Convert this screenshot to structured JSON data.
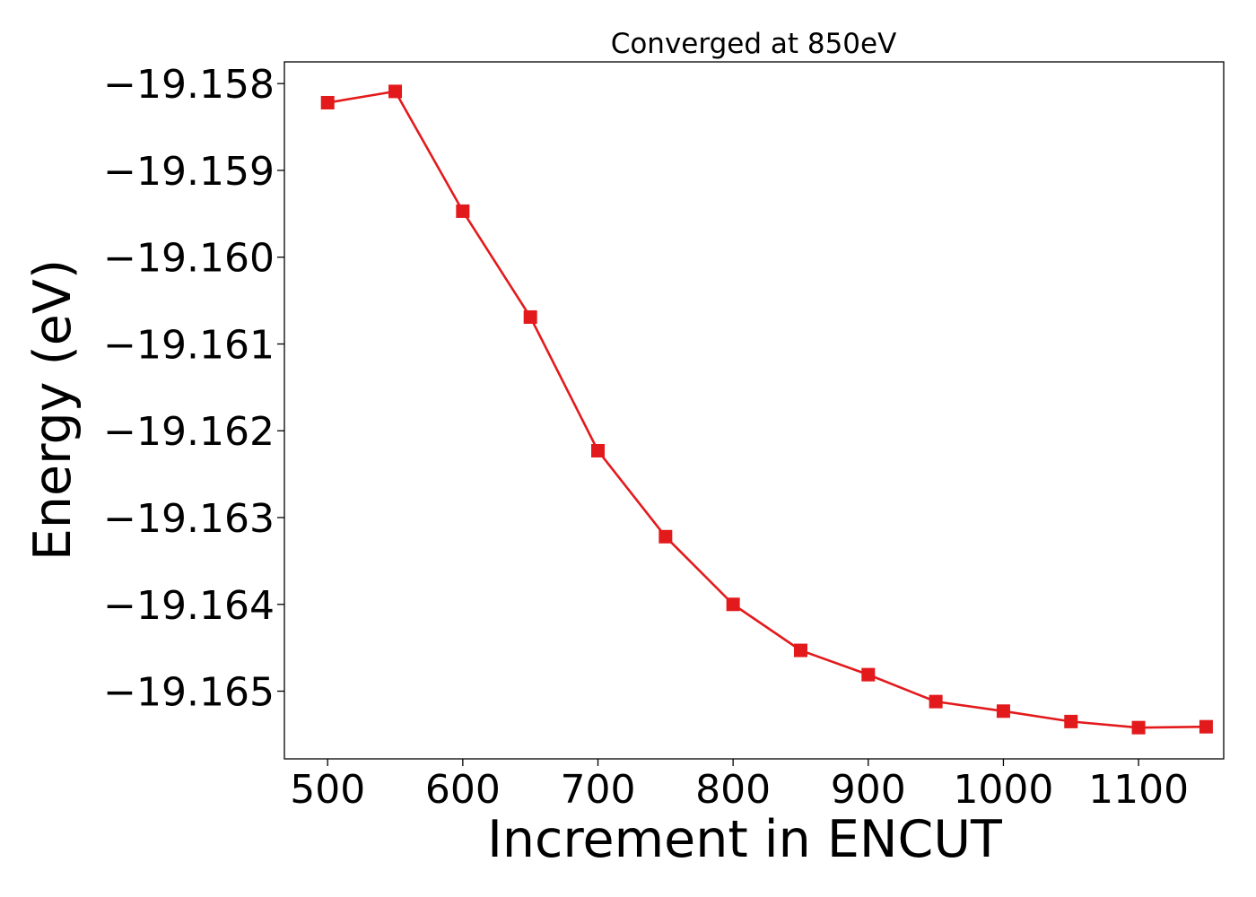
{
  "chart_data": {
    "type": "line",
    "title": "Converged at 850eV",
    "xlabel": "Increment in ENCUT",
    "ylabel": "Energy (eV)",
    "xlim": [
      468,
      1163
    ],
    "ylim": [
      -19.16578,
      -19.15775
    ],
    "xticks": [
      500,
      600,
      700,
      800,
      900,
      1000,
      1100
    ],
    "xtick_labels": [
      "500",
      "600",
      "700",
      "800",
      "900",
      "1000",
      "1100"
    ],
    "yticks": [
      -19.158,
      -19.159,
      -19.16,
      -19.161,
      -19.162,
      -19.163,
      -19.164,
      -19.165
    ],
    "ytick_labels": [
      "−19.158",
      "−19.159",
      "−19.160",
      "−19.161",
      "−19.162",
      "−19.163",
      "−19.164",
      "−19.165"
    ],
    "grid": false,
    "marker": "square",
    "color": "#e31a1c",
    "series": [
      {
        "x": [
          500,
          550,
          600,
          650,
          700,
          750,
          800,
          850,
          900,
          950,
          1000,
          1050,
          1100,
          1150
        ],
        "y": [
          -19.15822,
          -19.15809,
          -19.15947,
          -19.16069,
          -19.16223,
          -19.16322,
          -19.164,
          -19.16453,
          -19.16481,
          -19.16512,
          -19.16523,
          -19.16535,
          -19.16542,
          -19.16541
        ]
      }
    ]
  }
}
